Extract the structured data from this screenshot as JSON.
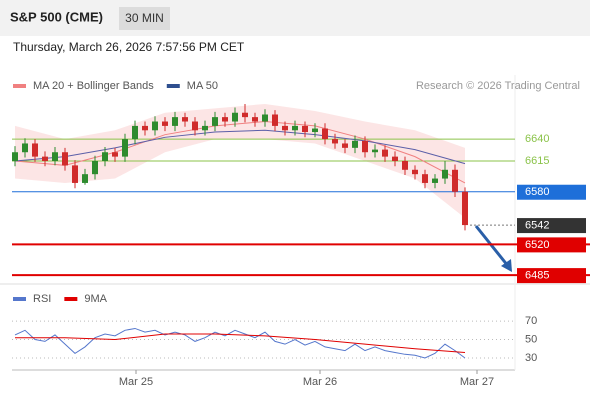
{
  "header": {
    "title": "S&P 500 (CME)",
    "timeframe": "30 MIN",
    "datetime": "Thursday, March 26, 2026 7:57:56 PM CET"
  },
  "chart_data": {
    "type": "candlestick",
    "legend": [
      {
        "name": "MA 20 + Bollinger Bands",
        "color": "#f08080"
      },
      {
        "name": "MA 50",
        "color": "#2f4f8f"
      }
    ],
    "watermark": "Research © 2026 Trading Central",
    "xlim": [
      -0.3,
      50
    ],
    "xticks": [
      {
        "value": 12.1,
        "label": "Mar 25"
      },
      {
        "value": 30.5,
        "label": "Mar 26"
      },
      {
        "value": 46.2,
        "label": "Mar 27"
      }
    ],
    "ylim": [
      6476,
      6713
    ],
    "up_color": "#2e8b2e",
    "down_color": "#d02b2b",
    "open": [
      6615,
      6625,
      6635,
      6620,
      6615,
      6625,
      6610,
      6590,
      6600,
      6615,
      6625,
      6620,
      6640,
      6655,
      6650,
      6660,
      6655,
      6665,
      6660,
      6650,
      6655,
      6665,
      6660,
      6670,
      6665,
      6660,
      6668,
      6655,
      6650,
      6655,
      6648,
      6652,
      6640,
      6635,
      6630,
      6638,
      6625,
      6628,
      6620,
      6615,
      6605,
      6600,
      6590,
      6595,
      6605,
      6580
    ],
    "close": [
      6625,
      6635,
      6620,
      6615,
      6625,
      6610,
      6590,
      6600,
      6615,
      6625,
      6620,
      6640,
      6655,
      6650,
      6660,
      6655,
      6665,
      6660,
      6650,
      6655,
      6665,
      6660,
      6670,
      6665,
      6660,
      6668,
      6655,
      6650,
      6655,
      6648,
      6652,
      6640,
      6635,
      6630,
      6638,
      6625,
      6628,
      6620,
      6615,
      6605,
      6600,
      6590,
      6595,
      6605,
      6580,
      6542
    ],
    "high": [
      6632,
      6641,
      6640,
      6626,
      6631,
      6630,
      6616,
      6606,
      6621,
      6631,
      6630,
      6646,
      6661,
      6660,
      6666,
      6665,
      6671,
      6670,
      6665,
      6661,
      6671,
      6670,
      6676,
      6680,
      6670,
      6674,
      6673,
      6660,
      6661,
      6660,
      6658,
      6658,
      6646,
      6640,
      6644,
      6643,
      6634,
      6633,
      6626,
      6620,
      6610,
      6605,
      6600,
      6615,
      6611,
      6585
    ],
    "low": [
      6609,
      6619,
      6614,
      6609,
      6610,
      6604,
      6584,
      6588,
      6594,
      6609,
      6614,
      6614,
      6634,
      6644,
      6644,
      6649,
      6649,
      6654,
      6644,
      6644,
      6649,
      6654,
      6654,
      6659,
      6654,
      6654,
      6649,
      6644,
      6644,
      6642,
      6642,
      6634,
      6629,
      6624,
      6624,
      6619,
      6619,
      6614,
      6609,
      6599,
      6594,
      6584,
      6584,
      6589,
      6574,
      6536
    ],
    "bands": {
      "color": "#fbdada",
      "x": [
        0,
        5,
        10,
        15,
        20,
        25,
        30,
        35,
        40,
        45
      ],
      "upper": [
        6655,
        6640,
        6650,
        6670,
        6675,
        6680,
        6672,
        6660,
        6650,
        6630
      ],
      "lower": [
        6595,
        6590,
        6595,
        6625,
        6640,
        6640,
        6635,
        6615,
        6595,
        6550
      ]
    },
    "series": [
      {
        "name": "MA 20",
        "color": "#f08080",
        "x": [
          0,
          5,
          10,
          15,
          20,
          25,
          30,
          35,
          40,
          45
        ],
        "values": [
          6615,
          6610,
          6625,
          6645,
          6655,
          6660,
          6655,
          6640,
          6620,
          6590
        ]
      },
      {
        "name": "MA 50",
        "color": "#5b5fa8",
        "x": [
          0,
          5,
          10,
          15,
          20,
          25,
          30,
          35,
          40,
          45
        ],
        "values": [
          6615,
          6620,
          6630,
          6642,
          6648,
          6650,
          6645,
          6638,
          6628,
          6612
        ]
      }
    ],
    "levels": [
      {
        "value": 6640,
        "color": "#8bc34a",
        "style": "line"
      },
      {
        "value": 6615,
        "color": "#8bc34a",
        "style": "line"
      },
      {
        "value": 6580,
        "color": "#1e6fd9",
        "style": "box"
      },
      {
        "value": 6542,
        "color": "#333333",
        "style": "dotted"
      },
      {
        "value": 6520,
        "color": "#e00000",
        "style": "box"
      },
      {
        "value": 6485,
        "color": "#e00000",
        "style": "box"
      }
    ],
    "rsi": {
      "legend": [
        {
          "name": "RSI",
          "color": "#5577cc"
        },
        {
          "name": "9MA",
          "color": "#e00000"
        }
      ],
      "ylim": [
        17,
        82
      ],
      "yticks": [
        70,
        50,
        30
      ],
      "values": [
        55,
        60,
        50,
        48,
        55,
        45,
        35,
        42,
        52,
        56,
        54,
        60,
        62,
        58,
        60,
        55,
        58,
        55,
        48,
        52,
        58,
        54,
        60,
        56,
        52,
        58,
        48,
        45,
        50,
        44,
        48,
        42,
        40,
        38,
        45,
        38,
        42,
        38,
        36,
        34,
        33,
        30,
        35,
        45,
        38,
        30
      ],
      "ma_x": [
        0,
        5,
        10,
        15,
        20,
        25,
        30,
        35,
        40,
        45
      ],
      "ma": [
        52,
        52,
        50,
        56,
        56,
        54,
        50,
        45,
        40,
        36
      ]
    }
  }
}
